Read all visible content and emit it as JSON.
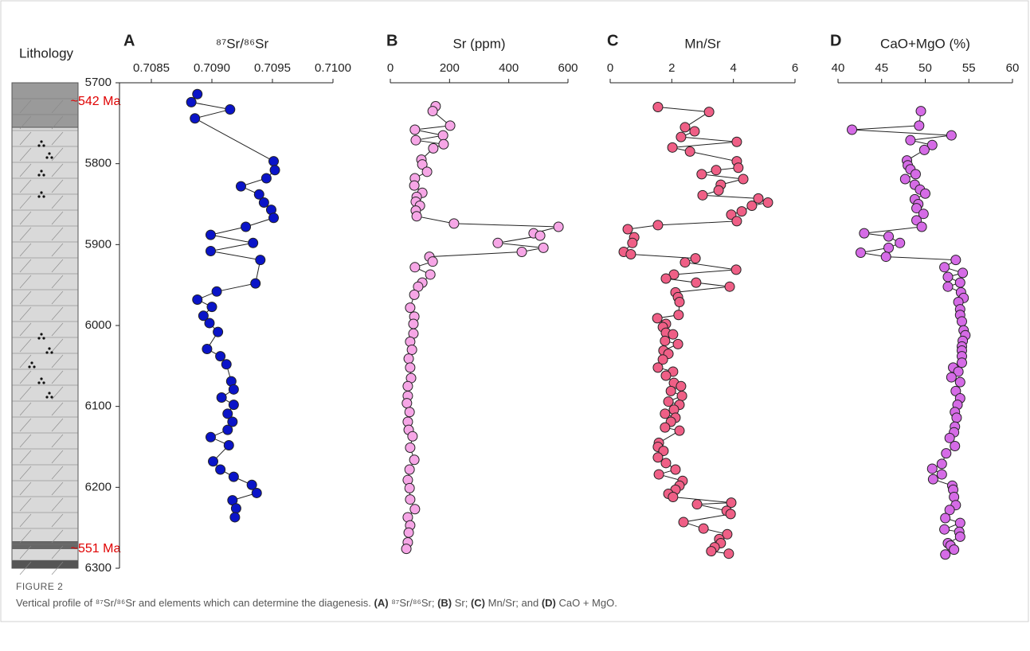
{
  "lithology": {
    "title": "Lithology",
    "annotations": [
      "~542 Ma",
      "~551 Ma"
    ]
  },
  "caption": {
    "label": "FIGURE 2",
    "parts": [
      {
        "text": "Vertical profile of ⁸⁷Sr/⁸⁶Sr and elements which can determine the diagenesis. ",
        "bold": false
      },
      {
        "text": "(A)",
        "bold": true
      },
      {
        "text": " ⁸⁷Sr/⁸⁶Sr; ",
        "bold": false
      },
      {
        "text": "(B)",
        "bold": true
      },
      {
        "text": " Sr; ",
        "bold": false
      },
      {
        "text": "(C)",
        "bold": true
      },
      {
        "text": " Mn/Sr; and ",
        "bold": false
      },
      {
        "text": "(D)",
        "bold": true
      },
      {
        "text": " CaO + MgO.",
        "bold": false
      }
    ]
  },
  "chart_data": [
    {
      "type": "line",
      "markers": true,
      "panel": "A",
      "title": "⁸⁷Sr/⁸⁶Sr",
      "color": "#0a14c8",
      "xlim": [
        0.7085,
        0.71
      ],
      "xticks": [
        0.7085,
        {
          "value": 0.709,
          "label": "0.7090"
        },
        0.7095,
        {
          "value": 0.71,
          "label": "0.7100"
        }
      ],
      "ylim": [
        6300,
        5700
      ],
      "yticks": [
        5700,
        5800,
        5900,
        6000,
        6100,
        6200,
        6300
      ],
      "depth": [
        5714,
        5724,
        5733,
        5744,
        5797,
        5808,
        5818,
        5828,
        5838,
        5848,
        5857,
        5867,
        5878,
        5888,
        5898,
        5908,
        5919,
        5948,
        5958,
        5968,
        5977,
        5988,
        5997,
        6008,
        6029,
        6038,
        6048,
        6069,
        6079,
        6089,
        6098,
        6109,
        6119,
        6129,
        6138,
        6148,
        6168,
        6178,
        6187,
        6197,
        6207,
        6216,
        6226,
        6237
      ],
      "values": [
        0.70888,
        0.70883,
        0.70915,
        0.70886,
        0.70951,
        0.70952,
        0.70945,
        0.70924,
        0.70939,
        0.70943,
        0.70949,
        0.70951,
        0.70928,
        0.70899,
        0.70934,
        0.70899,
        0.7094,
        0.70936,
        0.70904,
        0.70888,
        0.709,
        0.70893,
        0.70898,
        0.70905,
        0.70896,
        0.70907,
        0.70912,
        0.70916,
        0.70918,
        0.70908,
        0.70918,
        0.70913,
        0.70917,
        0.70913,
        0.70899,
        0.70914,
        0.70901,
        0.70907,
        0.70918,
        0.70933,
        0.70937,
        0.70917,
        0.7092,
        0.70919
      ]
    },
    {
      "type": "line",
      "markers": true,
      "panel": "B",
      "title": "Sr (ppm)",
      "color": "#f6a6e6",
      "xlim": [
        0,
        600
      ],
      "xticks": [
        0,
        200,
        400,
        600
      ],
      "ylim": [
        6300,
        5700
      ],
      "depth": [
        5729,
        5735,
        5753,
        5758,
        5765,
        5771,
        5776,
        5781,
        5795,
        5801,
        5810,
        5818,
        5827,
        5836,
        5841,
        5847,
        5852,
        5858,
        5865,
        5874,
        5878,
        5886,
        5889,
        5898,
        5904,
        5909,
        5915,
        5921,
        5928,
        5937,
        5947,
        5952,
        5962,
        5978,
        5989,
        5998,
        6010,
        6020,
        6030,
        6041,
        6052,
        6065,
        6075,
        6087,
        6096,
        6107,
        6119,
        6129,
        6137,
        6151,
        6166,
        6178,
        6191,
        6201,
        6215,
        6227,
        6237,
        6247,
        6256,
        6268,
        6276
      ],
      "values": [
        153,
        143,
        202,
        83,
        178,
        86,
        180,
        145,
        105,
        108,
        124,
        83,
        81,
        108,
        89,
        86,
        100,
        86,
        89,
        215,
        568,
        484,
        506,
        363,
        517,
        444,
        132,
        143,
        83,
        135,
        108,
        94,
        81,
        67,
        81,
        78,
        78,
        67,
        73,
        62,
        67,
        70,
        59,
        59,
        56,
        65,
        59,
        62,
        75,
        67,
        81,
        65,
        59,
        65,
        67,
        83,
        59,
        67,
        62,
        59,
        54
      ]
    },
    {
      "type": "line",
      "markers": true,
      "panel": "C",
      "title": "Mn/Sr",
      "color": "#ef5f86",
      "xlim": [
        0,
        6
      ],
      "xticks": [
        0,
        2,
        4,
        6
      ],
      "ylim": [
        6300,
        5700
      ],
      "depth": [
        5730,
        5736,
        5755,
        5760,
        5767,
        5773,
        5780,
        5785,
        5797,
        5805,
        5808,
        5813,
        5819,
        5826,
        5833,
        5839,
        5843,
        5848,
        5852,
        5859,
        5863,
        5871,
        5876,
        5881,
        5891,
        5898,
        5909,
        5912,
        5917,
        5922,
        5931,
        5937,
        5942,
        5947,
        5952,
        5959,
        5965,
        5971,
        5987,
        5991,
        5998,
        6002,
        6009,
        6011,
        6019,
        6023,
        6031,
        6035,
        6042,
        6052,
        6057,
        6062,
        6071,
        6075,
        6081,
        6087,
        6094,
        6098,
        6104,
        6109,
        6114,
        6119,
        6126,
        6130,
        6145,
        6150,
        6155,
        6163,
        6170,
        6178,
        6184,
        6192,
        6198,
        6203,
        6208,
        6212,
        6219,
        6221,
        6229,
        6233,
        6243,
        6251,
        6258,
        6264,
        6269,
        6274,
        6279,
        6282
      ],
      "values": [
        1.55,
        3.21,
        2.43,
        2.74,
        2.3,
        4.11,
        2.02,
        2.59,
        4.11,
        4.16,
        3.44,
        2.97,
        4.32,
        3.59,
        3.52,
        3.0,
        4.81,
        5.12,
        4.6,
        4.27,
        3.93,
        4.11,
        1.55,
        0.57,
        0.78,
        0.72,
        0.44,
        0.67,
        2.77,
        2.43,
        4.09,
        2.07,
        1.81,
        2.79,
        3.88,
        2.12,
        2.2,
        2.25,
        2.22,
        1.53,
        1.81,
        1.71,
        1.81,
        2.04,
        1.78,
        2.2,
        1.73,
        1.89,
        1.71,
        1.55,
        2.04,
        1.81,
        2.07,
        2.3,
        1.97,
        2.33,
        1.89,
        2.25,
        2.07,
        1.78,
        2.12,
        1.97,
        1.78,
        2.25,
        1.58,
        1.55,
        1.73,
        1.55,
        1.81,
        2.12,
        1.58,
        2.35,
        2.25,
        2.12,
        1.89,
        2.04,
        3.93,
        2.82,
        3.78,
        3.91,
        2.38,
        3.03,
        3.8,
        3.54,
        3.59,
        3.39,
        3.28,
        3.85
      ]
    },
    {
      "type": "line",
      "markers": true,
      "panel": "D",
      "title": "CaO+MgO (%)",
      "color": "#d56be6",
      "xlim": [
        40,
        60
      ],
      "xticks": [
        40,
        45,
        50,
        55,
        60
      ],
      "ylim": [
        6300,
        5700
      ],
      "depth": [
        5735,
        5753,
        5758,
        5765,
        5771,
        5777,
        5783,
        5796,
        5802,
        5807,
        5813,
        5819,
        5826,
        5832,
        5837,
        5844,
        5850,
        5855,
        5862,
        5870,
        5878,
        5886,
        5890,
        5898,
        5904,
        5910,
        5915,
        5919,
        5928,
        5935,
        5940,
        5947,
        5952,
        5959,
        5966,
        5971,
        5980,
        5987,
        5995,
        6006,
        6012,
        6019,
        6026,
        6031,
        6038,
        6046,
        6052,
        6057,
        6064,
        6070,
        6081,
        6090,
        6098,
        6107,
        6114,
        6125,
        6132,
        6139,
        6149,
        6158,
        6171,
        6177,
        6184,
        6190,
        6198,
        6203,
        6212,
        6222,
        6228,
        6238,
        6244,
        6252,
        6255,
        6261,
        6269,
        6272,
        6277,
        6283
      ],
      "values": [
        49.5,
        49.3,
        41.6,
        53.0,
        48.3,
        50.8,
        49.9,
        47.9,
        48.0,
        48.3,
        48.9,
        47.7,
        48.8,
        49.4,
        50.0,
        48.8,
        49.2,
        49.0,
        49.8,
        49.0,
        49.6,
        43.0,
        45.8,
        47.1,
        45.8,
        42.6,
        45.5,
        53.5,
        52.2,
        54.3,
        52.6,
        54.0,
        52.6,
        54.1,
        54.4,
        53.8,
        54.0,
        54.0,
        54.2,
        54.4,
        54.6,
        54.3,
        54.2,
        54.2,
        54.2,
        54.2,
        53.2,
        53.8,
        53.0,
        54.0,
        53.5,
        54.0,
        53.7,
        53.4,
        53.6,
        53.4,
        53.3,
        52.8,
        53.4,
        52.4,
        51.9,
        50.8,
        51.9,
        50.9,
        53.1,
        53.2,
        53.3,
        53.5,
        52.8,
        52.3,
        54.0,
        52.2,
        53.9,
        54.0,
        52.6,
        52.9,
        53.3,
        52.3
      ]
    }
  ]
}
